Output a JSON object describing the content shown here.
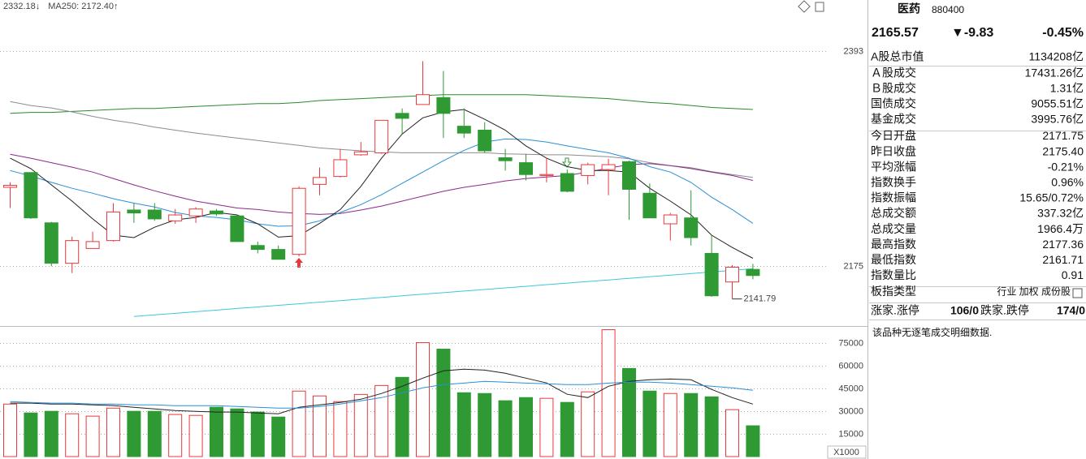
{
  "chart_data": [
    {
      "type": "candlestick",
      "legend": [
        {
          "text": "2332.18↓",
          "color": "#333333"
        },
        {
          "text": "MA250: 2172.40↑",
          "color": "#19b3c6"
        }
      ],
      "open": [
        2255,
        2270,
        2219,
        2178,
        2193,
        2201,
        2232,
        2232,
        2221,
        2226,
        2231,
        2226,
        2196,
        2192,
        2187,
        2258,
        2266,
        2288,
        2290,
        2330,
        2339,
        2346,
        2317,
        2313,
        2285,
        2280,
        2267,
        2269,
        2267,
        2273,
        2281,
        2249,
        2218,
        2224,
        2188,
        2159,
        2171.75
      ],
      "high": [
        2260,
        2270,
        2220,
        2205,
        2210,
        2239,
        2239,
        2239,
        2233,
        2235,
        2233,
        2227,
        2200,
        2196,
        2256,
        2275,
        2294,
        2301,
        2323,
        2335,
        2383,
        2373,
        2335,
        2321,
        2294,
        2289,
        2285,
        2273,
        2280,
        2284,
        2282,
        2259,
        2229,
        2252,
        2206,
        2176,
        2177.36
      ],
      "low": [
        2234,
        2223,
        2175,
        2168,
        2193,
        2200,
        2219,
        2221,
        2218,
        2219,
        2226,
        2200,
        2188,
        2182,
        2185,
        2247,
        2265,
        2287,
        2289,
        2309,
        2339,
        2305,
        2305,
        2290,
        2272,
        2262,
        2260,
        2250,
        2258,
        2247,
        2222,
        2224,
        2201,
        2196,
        2144,
        2141.79,
        2161.71
      ],
      "close": [
        2257,
        2224,
        2178,
        2201,
        2200,
        2230,
        2229,
        2223,
        2227,
        2233,
        2228,
        2200,
        2192,
        2182,
        2254,
        2265,
        2283,
        2291,
        2323,
        2325,
        2349,
        2330,
        2310,
        2292,
        2282,
        2268,
        2268,
        2251,
        2278,
        2278,
        2253,
        2224,
        2227,
        2204,
        2145,
        2174,
        2165.57
      ],
      "up_color": "#e8383d",
      "down_color": "#2f9a34",
      "series": [
        {
          "color": "#2a8a2a",
          "values": [
            2330,
            2331,
            2331,
            2332,
            2333,
            2334,
            2335,
            2335,
            2336,
            2337,
            2338,
            2339,
            2340,
            2340,
            2341,
            2343,
            2344,
            2345,
            2346,
            2347,
            2348,
            2349,
            2349,
            2349,
            2349,
            2349,
            2348,
            2347,
            2346,
            2345,
            2343,
            2341,
            2340,
            2338,
            2336,
            2335,
            2334
          ]
        },
        {
          "color": "#8c8c8c",
          "values": [
            2342,
            2338,
            2335.5,
            2331.5,
            2327,
            2323,
            2320,
            2316,
            2313,
            2310,
            2307.5,
            2305,
            2302.5,
            2300,
            2297.5,
            2295,
            2293.5,
            2292,
            2291,
            2290,
            2290,
            2290,
            2290,
            2290,
            2289,
            2288.5,
            2288,
            2288,
            2287,
            2286,
            2284,
            2280,
            2277,
            2275,
            2271,
            2268,
            2265
          ]
        },
        {
          "color": "#8a2a8a",
          "values": [
            2288.5,
            2284.5,
            2280,
            2275.5,
            2270.5,
            2264,
            2257.5,
            2251.5,
            2246,
            2241,
            2237.5,
            2234,
            2232.5,
            2230,
            2228.5,
            2227.5,
            2228.5,
            2232,
            2236,
            2241,
            2246,
            2251,
            2255,
            2258,
            2261.5,
            2264,
            2265.5,
            2267,
            2270.5,
            2274.5,
            2278,
            2279,
            2277,
            2274,
            2270.5,
            2267,
            2262
          ]
        },
        {
          "color": "#2b8fd6",
          "values": [
            2272,
            2266.5,
            2260,
            2254,
            2249,
            2243.5,
            2239,
            2235,
            2229.5,
            2226,
            2224.5,
            2222,
            2218,
            2215.5,
            2216,
            2221,
            2229.5,
            2237.5,
            2247.5,
            2259,
            2270.5,
            2282,
            2292.5,
            2301,
            2304,
            2303.5,
            2301,
            2297,
            2293.5,
            2290,
            2284.5,
            2276,
            2270.5,
            2260,
            2245,
            2232.5,
            2218.5
          ]
        },
        {
          "color": "#222222",
          "values": [
            2284.5,
            2274,
            2257.5,
            2241,
            2223,
            2206.5,
            2204,
            2214.5,
            2222,
            2224.5,
            2229.5,
            2227,
            2218,
            2204.5,
            2206,
            2218.5,
            2232.5,
            2256,
            2284.5,
            2309,
            2325.5,
            2331.5,
            2334,
            2324,
            2313,
            2297,
            2284.5,
            2276,
            2272,
            2272,
            2270.5,
            2254,
            2241,
            2227,
            2206.5,
            2194,
            2183
          ]
        },
        {
          "color": "#3cc8d8",
          "values": [
            null,
            null,
            null,
            null,
            null,
            null,
            2124,
            2125.6,
            2127.2,
            2128.8,
            2130.5,
            2132.1,
            2133.7,
            2135.3,
            2136.9,
            2138.5,
            2140.1,
            2141.7,
            2143.4,
            2145,
            2146.6,
            2148.2,
            2149.8,
            2151.4,
            2153,
            2154.6,
            2156.3,
            2157.9,
            2159.5,
            2161.1,
            2162.7,
            2164.3,
            2165.9,
            2167.5,
            2169.2,
            2170.8,
            2172.4
          ]
        }
      ],
      "ylim": [
        2116,
        2445
      ],
      "yticks": [
        2393,
        2175
      ],
      "grid": true,
      "annotations": [
        {
          "text": "2141.79"
        }
      ]
    },
    {
      "type": "bar",
      "values": [
        34800,
        28900,
        30000,
        28400,
        26800,
        32100,
        30000,
        30000,
        27900,
        27300,
        32700,
        31600,
        29500,
        26200,
        43400,
        40200,
        36400,
        41200,
        47100,
        52500,
        75500,
        71200,
        42300,
        41800,
        37000,
        39100,
        38600,
        35900,
        42900,
        84100,
        58400,
        43400,
        41800,
        41800,
        39600,
        31100,
        20400
      ],
      "series": [
        {
          "color": "#222222",
          "values": [
            35400,
            35400,
            34800,
            34800,
            34300,
            33800,
            32700,
            31600,
            30500,
            30000,
            29500,
            29500,
            28900,
            28400,
            32700,
            34300,
            35900,
            38000,
            41800,
            46600,
            52000,
            56800,
            57900,
            57300,
            55200,
            52000,
            48800,
            41300,
            39100,
            46600,
            49800,
            50900,
            51400,
            50900,
            44500,
            39100,
            34800
          ]
        },
        {
          "color": "#2b8fd6",
          "values": [
            36400,
            35900,
            35400,
            35400,
            34800,
            34800,
            34300,
            34300,
            33700,
            33700,
            33700,
            33200,
            32700,
            32100,
            32100,
            33200,
            34800,
            37000,
            39100,
            42300,
            45500,
            47700,
            48700,
            49800,
            49300,
            48700,
            48200,
            47700,
            47700,
            48700,
            49300,
            49300,
            48700,
            47700,
            46600,
            45500,
            43900
          ]
        }
      ],
      "ylim": [
        0,
        86000
      ],
      "yticks": [
        75000,
        60000,
        45000,
        30000,
        15000
      ],
      "unit_label": "X1000",
      "grid": true
    }
  ],
  "info": {
    "name": "医药",
    "code": "880400",
    "price": "2165.57",
    "change": "▼-9.83",
    "change_pct": "-0.45%",
    "quote_color": "#2f9a34",
    "rows": [
      {
        "label": "A股总市值",
        "value": "1134208亿",
        "color": "#111111"
      },
      {
        "label": "Ａ股成交",
        "value": "17431.26亿",
        "color": "#111111"
      },
      {
        "label": "Ｂ股成交",
        "value": "1.31亿",
        "color": "#111111"
      },
      {
        "label": "国债成交",
        "value": "9055.51亿",
        "color": "#111111"
      },
      {
        "label": "基金成交",
        "value": "3995.76亿",
        "color": "#111111"
      },
      {
        "label": "今日开盘",
        "value": "2171.75",
        "color": "#2f9a34"
      },
      {
        "label": "昨日收盘",
        "value": "2175.40",
        "color": "#111111"
      },
      {
        "label": "平均涨幅",
        "value": "-0.21%",
        "color": "#2f9a34"
      },
      {
        "label": "指数换手",
        "value": "0.96%",
        "color": "#111111"
      },
      {
        "label": "指数振幅",
        "value": "15.65/0.72%",
        "color": "#111111"
      },
      {
        "label": "总成交额",
        "value": "337.32亿",
        "color": "#111111"
      },
      {
        "label": "总成交量",
        "value": "1966.4万",
        "color": "#111111"
      },
      {
        "label": "最高指数",
        "value": "2177.36",
        "color": "#e8383d"
      },
      {
        "label": "最低指数",
        "value": "2161.71",
        "color": "#2f9a34"
      },
      {
        "label": "指数量比",
        "value": "0.91",
        "color": "#2f9a34"
      },
      {
        "label": "板指类型",
        "value": "行业 加权 成份股",
        "color": "#444444"
      }
    ],
    "breadth": {
      "up_label": "涨家.涨停",
      "up_value": "106/0",
      "up_color": "#e8383d",
      "down_label": "跌家.跌停",
      "down_value": "174/0",
      "down_color": "#2f9a34"
    },
    "note": "该品种无逐笔成交明细数据."
  }
}
